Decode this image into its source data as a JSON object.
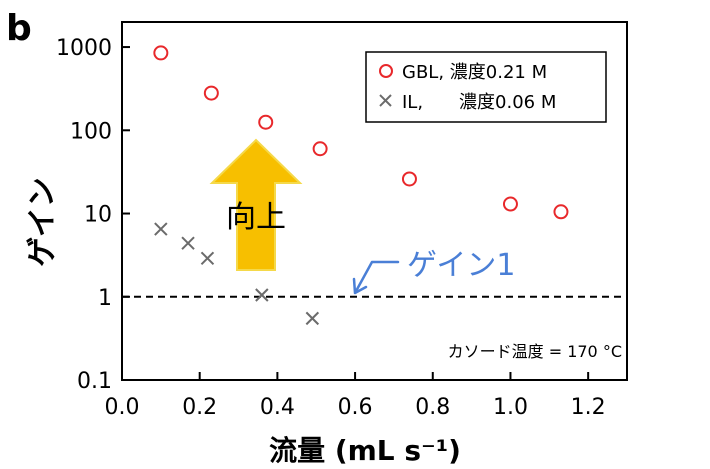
{
  "panel_label": "b",
  "colors": {
    "gbl": "#e8282b",
    "il": "#6b6b6b",
    "arrow_fill": "#f7bf00",
    "arrow_edge": "#f5d94a",
    "annotation_blue": "#4a7fd6",
    "axis": "#000000"
  },
  "chart_data": {
    "type": "scatter",
    "xlabel": "流量 (mL s⁻¹)",
    "ylabel": "ゲイン",
    "xlim": [
      0.0,
      1.3
    ],
    "ylim": [
      0.1,
      2000
    ],
    "yscale": "log",
    "xticks": [
      "0.0",
      "0.2",
      "0.4",
      "0.6",
      "0.8",
      "1.0",
      "1.2"
    ],
    "yticks": [
      "0.1",
      "1",
      "10",
      "100",
      "1000"
    ],
    "grid": false,
    "legend": "top-right",
    "series": [
      {
        "name": "GBL, 濃度0.21 M",
        "marker": "circle",
        "x": [
          0.1,
          0.23,
          0.37,
          0.51,
          0.74,
          1.0,
          1.13
        ],
        "y": [
          850,
          280,
          125,
          60,
          26,
          13,
          10.5
        ]
      },
      {
        "name": "IL,　　濃度0.06 M",
        "marker": "x",
        "x": [
          0.1,
          0.17,
          0.22,
          0.36,
          0.49
        ],
        "y": [
          6.5,
          4.4,
          2.9,
          1.05,
          0.55
        ]
      }
    ],
    "reference_line": {
      "y": 1,
      "style": "dashed"
    },
    "annotations": {
      "improve": "向上",
      "gain_one": "ゲイン1",
      "cathode_temp": "カソード温度 = 170 °C"
    }
  }
}
